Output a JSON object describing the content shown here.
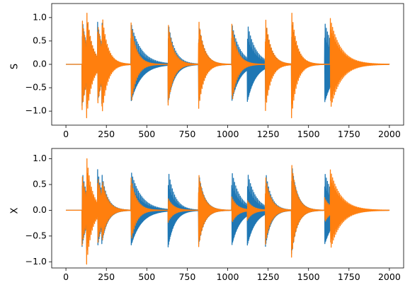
{
  "chart_data": [
    {
      "type": "line",
      "ylabel": "S",
      "xlabel": "",
      "xlim": [
        -88,
        2088
      ],
      "ylim": [
        -1.3,
        1.3
      ],
      "xticks": [
        0,
        250,
        500,
        750,
        1000,
        1250,
        1500,
        1750,
        2000
      ],
      "xtick_labels": [
        "0",
        "250",
        "500",
        "750",
        "1000",
        "1250",
        "1500",
        "1750",
        "2000"
      ],
      "yticks": [
        -1.0,
        -0.5,
        0.0,
        0.5,
        1.0
      ],
      "ytick_labels": [
        "−1.0",
        "−0.5",
        "0.0",
        "0.5",
        "1.0"
      ],
      "grid": false,
      "series": [
        {
          "color": "#1f77b4",
          "bursts": [
            {
              "start": 100,
              "amplitude": 0.98,
              "decay": 0.0285
            },
            {
              "start": 128,
              "amplitude": 1.0,
              "decay": 0.0285
            },
            {
              "start": 196,
              "amplitude": 0.9,
              "decay": 0.0285
            },
            {
              "start": 222,
              "amplitude": 0.93,
              "decay": 0.0285
            },
            {
              "start": 402,
              "amplitude": 0.89,
              "decay": 0.0158
            },
            {
              "start": 632,
              "amplitude": 0.9,
              "decay": 0.0245
            },
            {
              "start": 820,
              "amplitude": 0.9,
              "decay": 0.0285
            },
            {
              "start": 1025,
              "amplitude": 0.89,
              "decay": 0.0194
            },
            {
              "start": 1122,
              "amplitude": 0.88,
              "decay": 0.0194
            },
            {
              "start": 1233,
              "amplitude": 0.91,
              "decay": 0.0285
            },
            {
              "start": 1395,
              "amplitude": 0.96,
              "decay": 0.0285
            },
            {
              "start": 1600,
              "amplitude": 0.9,
              "decay": 0.0154
            }
          ]
        },
        {
          "color": "#ff7f0e",
          "bursts": [
            {
              "start": 100,
              "amplitude": 1.0,
              "decay": 0.0285
            },
            {
              "start": 128,
              "amplitude": 1.18,
              "decay": 0.0285
            },
            {
              "start": 196,
              "amplitude": 0.9,
              "decay": 0.0285
            },
            {
              "start": 222,
              "amplitude": 1.15,
              "decay": 0.0285
            },
            {
              "start": 402,
              "amplitude": 0.93,
              "decay": 0.0285
            },
            {
              "start": 632,
              "amplitude": 0.9,
              "decay": 0.0285
            },
            {
              "start": 820,
              "amplitude": 1.0,
              "decay": 0.0285
            },
            {
              "start": 1025,
              "amplitude": 0.9,
              "decay": 0.0285
            },
            {
              "start": 1233,
              "amplitude": 1.05,
              "decay": 0.0285
            },
            {
              "start": 1395,
              "amplitude": 1.18,
              "decay": 0.0285
            },
            {
              "start": 1635,
              "amplitude": 1.0,
              "decay": 0.0154
            }
          ]
        }
      ]
    },
    {
      "type": "line",
      "ylabel": "X",
      "xlabel": "",
      "xlim": [
        -88,
        2088
      ],
      "ylim": [
        -1.12,
        1.2
      ],
      "xticks": [
        0,
        250,
        500,
        750,
        1000,
        1250,
        1500,
        1750,
        2000
      ],
      "xtick_labels": [
        "0",
        "250",
        "500",
        "750",
        "1000",
        "1250",
        "1500",
        "1750",
        "2000"
      ],
      "yticks": [
        -1.0,
        -0.5,
        0.0,
        0.5,
        1.0
      ],
      "ytick_labels": [
        "−1.0",
        "−0.5",
        "0.0",
        "0.5",
        "1.0"
      ],
      "grid": false,
      "series": [
        {
          "color": "#1f77b4",
          "bursts": [
            {
              "start": 100,
              "amplitude": 0.78,
              "decay": 0.0285
            },
            {
              "start": 128,
              "amplitude": 0.82,
              "decay": 0.0285
            },
            {
              "start": 196,
              "amplitude": 0.79,
              "decay": 0.0285
            },
            {
              "start": 222,
              "amplitude": 0.72,
              "decay": 0.0285
            },
            {
              "start": 402,
              "amplitude": 0.77,
              "decay": 0.0158
            },
            {
              "start": 632,
              "amplitude": 0.79,
              "decay": 0.0245
            },
            {
              "start": 820,
              "amplitude": 0.75,
              "decay": 0.0285
            },
            {
              "start": 1025,
              "amplitude": 0.77,
              "decay": 0.0194
            },
            {
              "start": 1122,
              "amplitude": 0.75,
              "decay": 0.0194
            },
            {
              "start": 1233,
              "amplitude": 0.8,
              "decay": 0.0285
            },
            {
              "start": 1395,
              "amplitude": 0.93,
              "decay": 0.0285
            },
            {
              "start": 1600,
              "amplitude": 0.73,
              "decay": 0.0154
            }
          ]
        },
        {
          "color": "#ff7f0e",
          "bursts": [
            {
              "start": 100,
              "amplitude": 0.7,
              "decay": 0.0285
            },
            {
              "start": 128,
              "amplitude": 1.08,
              "decay": 0.0285
            },
            {
              "start": 196,
              "amplitude": 0.68,
              "decay": 0.0285
            },
            {
              "start": 222,
              "amplitude": 0.66,
              "decay": 0.0285
            },
            {
              "start": 402,
              "amplitude": 0.66,
              "decay": 0.0285
            },
            {
              "start": 632,
              "amplitude": 0.24,
              "decay": 0.0285
            },
            {
              "start": 820,
              "amplitude": 0.75,
              "decay": 0.0285
            },
            {
              "start": 1025,
              "amplitude": 0.27,
              "decay": 0.0285
            },
            {
              "start": 1122,
              "amplitude": 0.2,
              "decay": 0.0285
            },
            {
              "start": 1233,
              "amplitude": 0.7,
              "decay": 0.0285
            },
            {
              "start": 1395,
              "amplitude": 0.94,
              "decay": 0.0285
            },
            {
              "start": 1600,
              "amplitude": 0.25,
              "decay": 0.0285
            },
            {
              "start": 1635,
              "amplitude": 0.8,
              "decay": 0.0154
            }
          ]
        }
      ]
    }
  ]
}
